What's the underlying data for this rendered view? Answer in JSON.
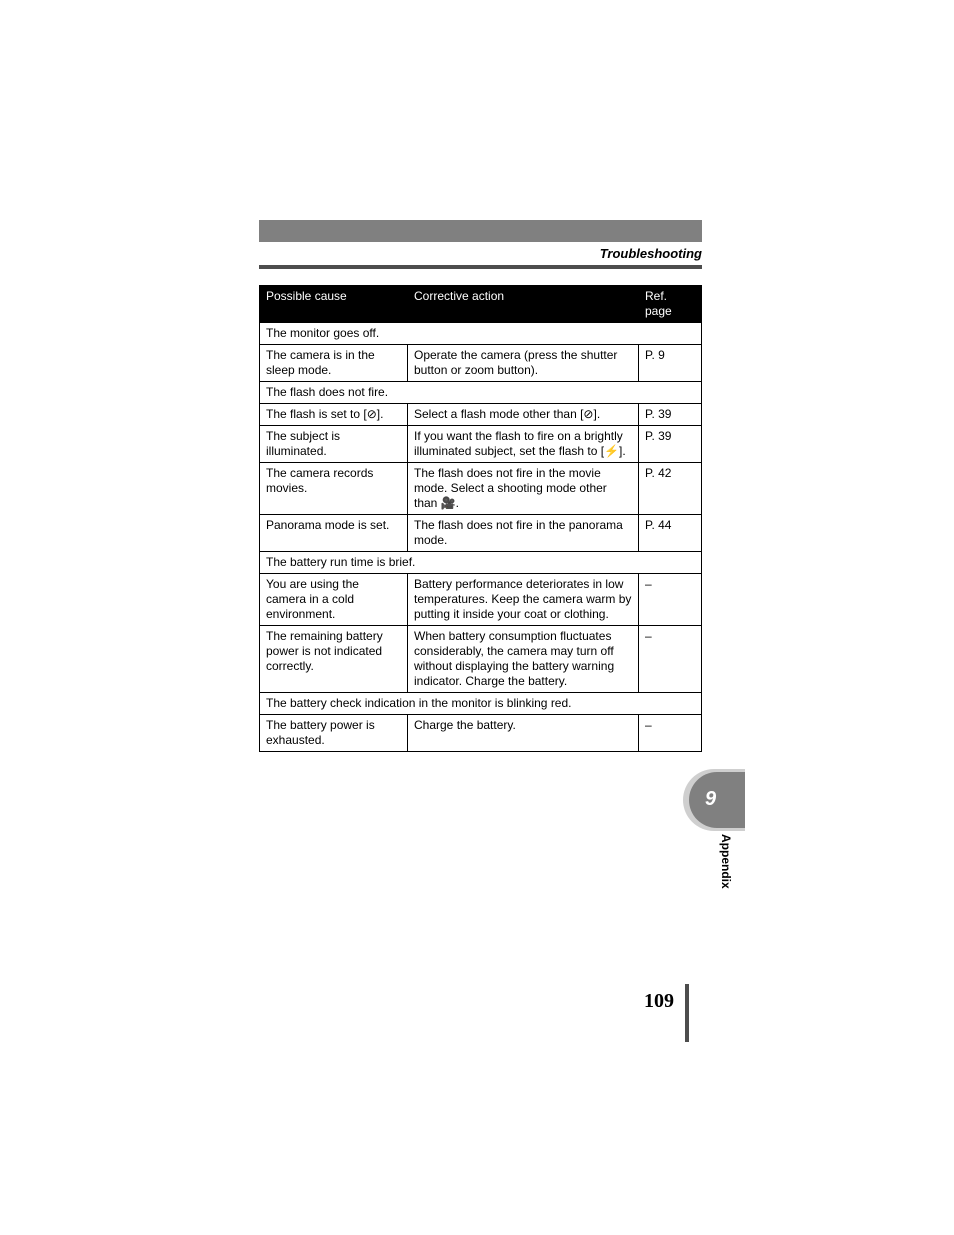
{
  "section_title": "Troubleshooting",
  "side_tab": {
    "number": "9",
    "label": "Appendix"
  },
  "page_number": "109",
  "table": {
    "headers": {
      "cause": "Possible cause",
      "action": "Corrective action",
      "ref": "Ref. page"
    },
    "groups": [
      {
        "heading": "The monitor goes off.",
        "rows": [
          {
            "cause": "The camera is in the sleep mode.",
            "action": "Operate the camera (press the shutter button or zoom button).",
            "ref": "P. 9"
          }
        ]
      },
      {
        "heading": "The flash does not fire.",
        "rows": [
          {
            "cause": "The flash is set to [⊘].",
            "action": "Select a flash mode other than [⊘].",
            "ref": "P. 39"
          },
          {
            "cause": "The subject is illuminated.",
            "action": "If you want the flash to fire on a brightly illuminated subject, set the flash to [⚡].",
            "ref": "P. 39"
          },
          {
            "cause": "The camera records movies.",
            "action": "The flash does not fire in the movie mode. Select a shooting mode other than 🎥.",
            "ref": "P. 42"
          },
          {
            "cause": "Panorama mode is set.",
            "action": "The flash does not fire in the panorama mode.",
            "ref": "P. 44"
          }
        ]
      },
      {
        "heading": "The battery run time is brief.",
        "rows": [
          {
            "cause": "You are using the camera in a cold environment.",
            "action": "Battery performance deteriorates in low temperatures. Keep the camera warm by putting it inside your coat or clothing.",
            "ref": "–"
          },
          {
            "cause": "The remaining battery power is not indicated correctly.",
            "action": "When battery consumption fluctuates considerably, the camera may turn off without displaying the battery warning indicator. Charge the battery.",
            "ref": "–"
          }
        ]
      },
      {
        "heading": "The battery check indication in the monitor is blinking red.",
        "rows": [
          {
            "cause": "The battery power is exhausted.",
            "action": "Charge the battery.",
            "ref": "–"
          }
        ]
      }
    ]
  }
}
